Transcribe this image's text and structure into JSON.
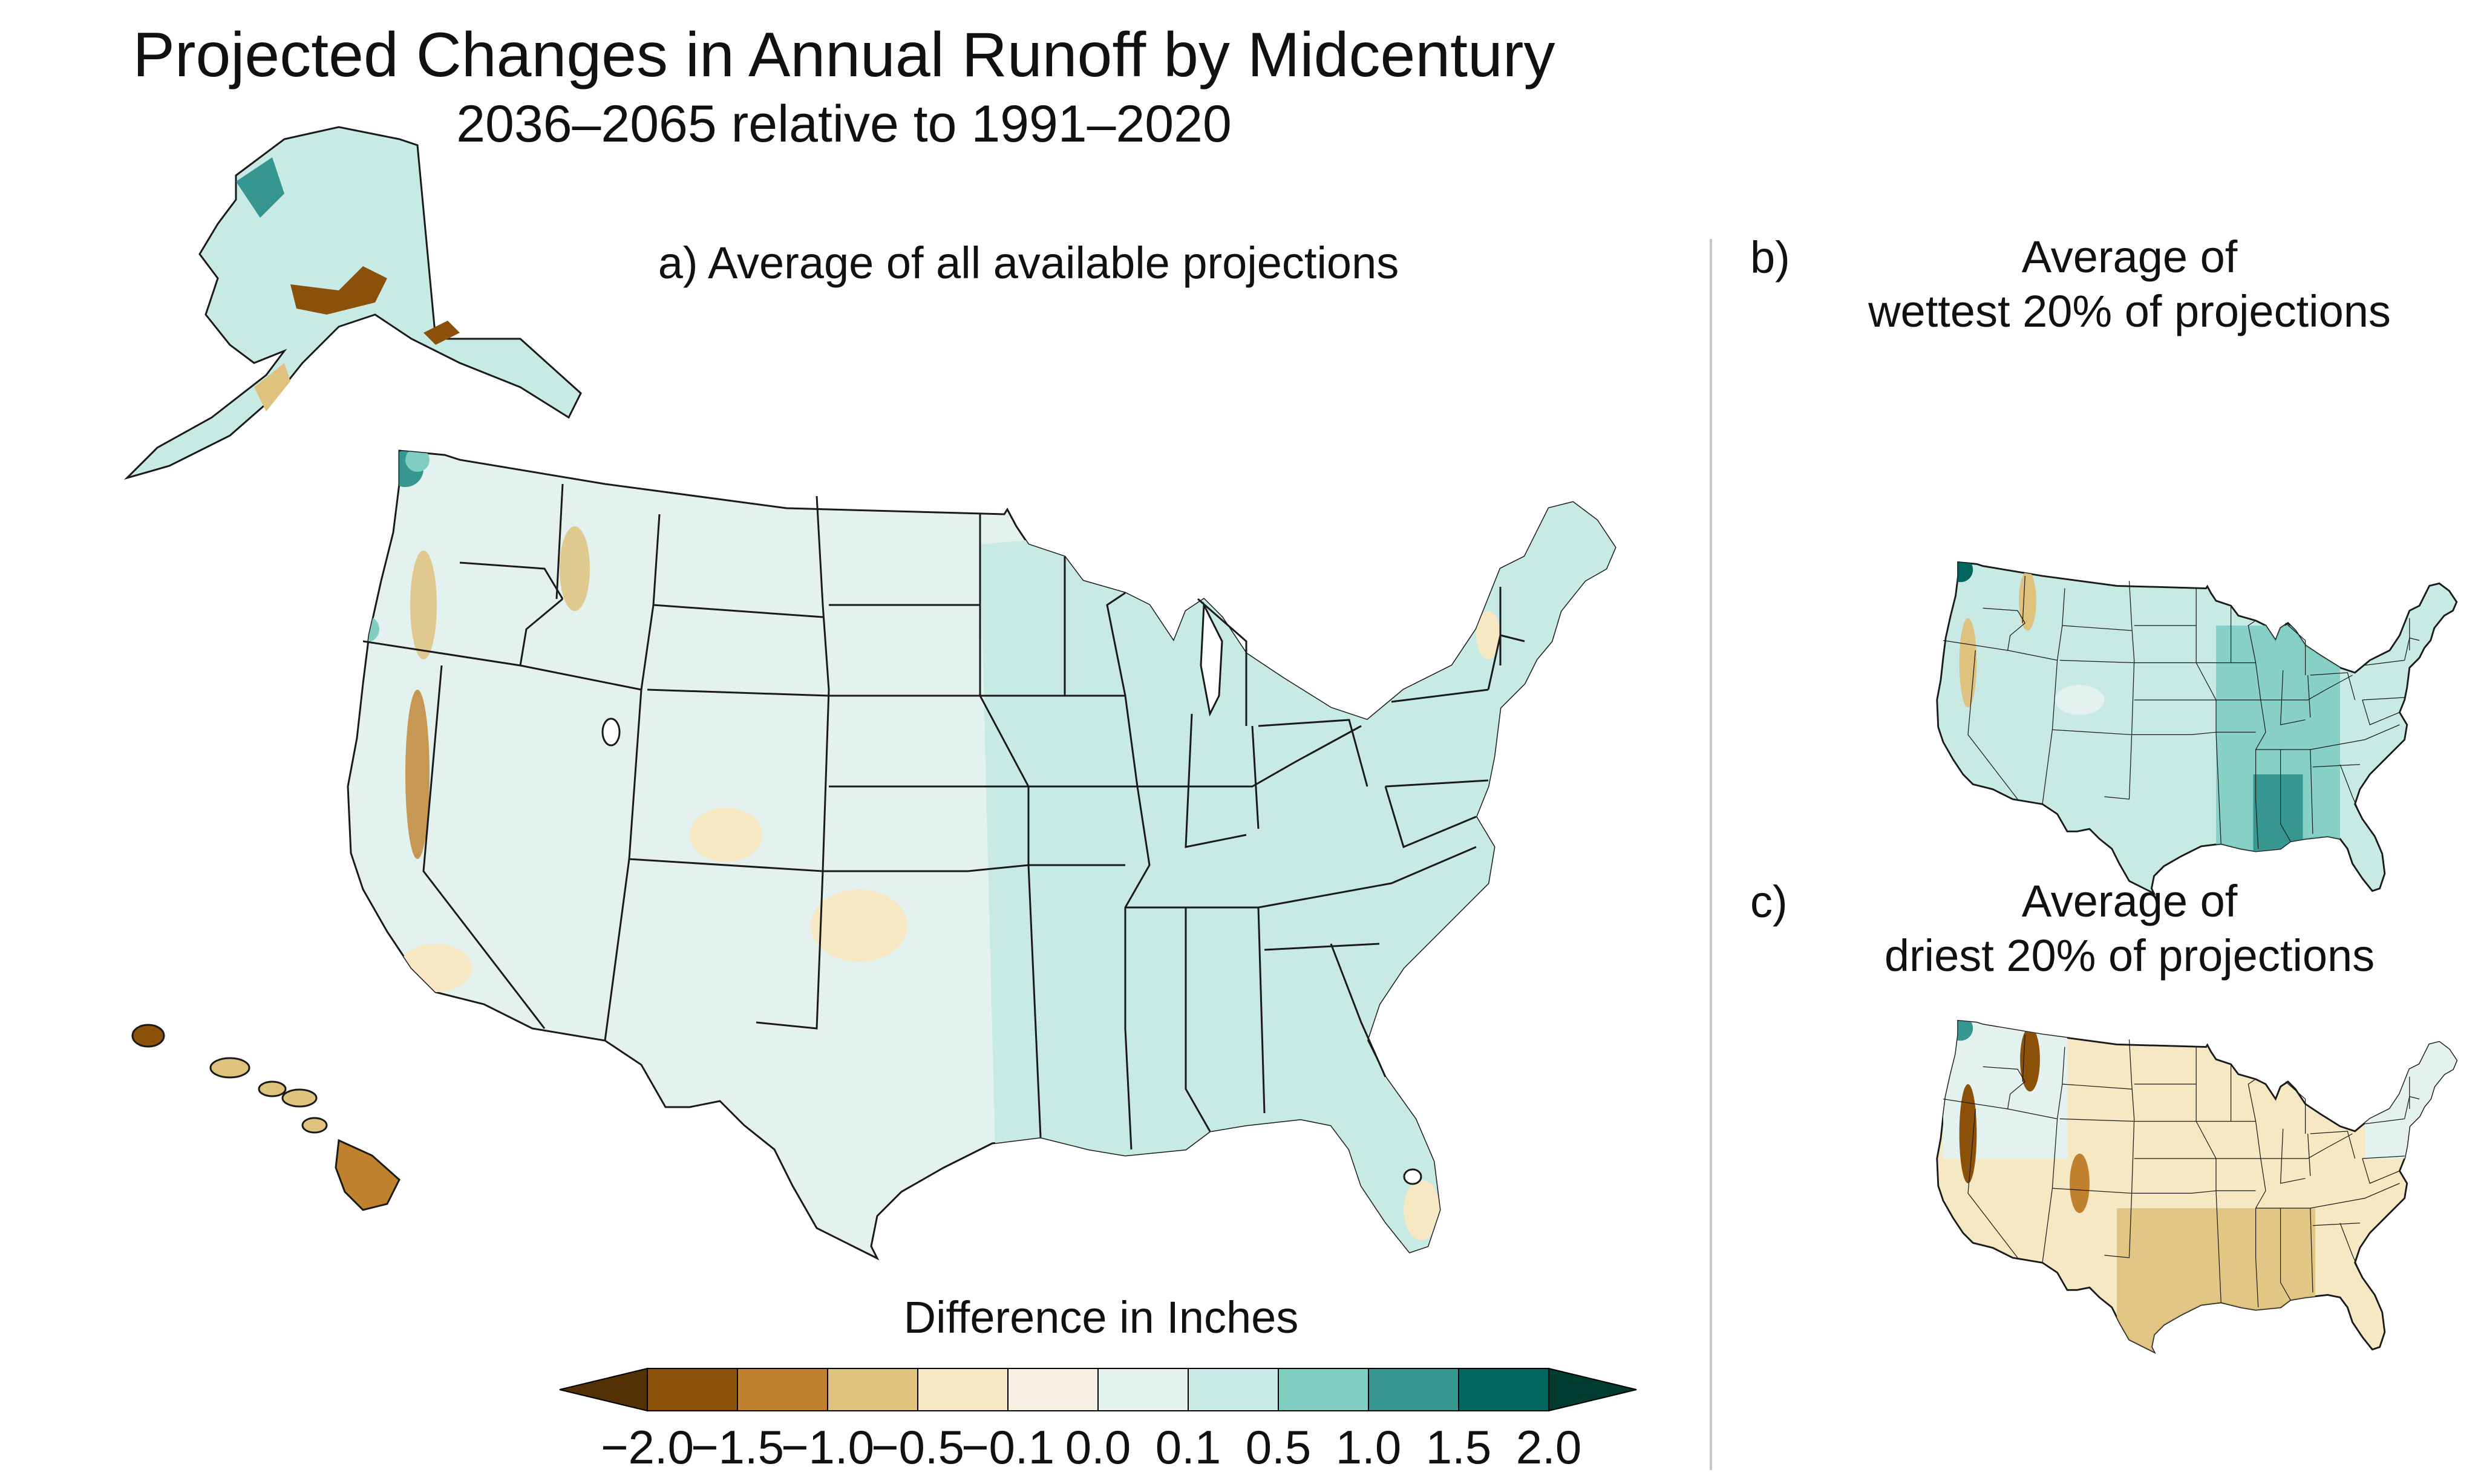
{
  "title": "Projected Changes in Annual Runoff by Midcentury",
  "subtitle": "2036–2065 relative to 1991–2020",
  "panels": {
    "a": {
      "label": "",
      "title": "a) Average of all available projections"
    },
    "b": {
      "label": "b)",
      "title_line1": "Average of",
      "title_line2": "wettest 20% of projections"
    },
    "c": {
      "label": "c)",
      "title_line1": "Average of",
      "title_line2": "driest 20% of projections"
    }
  },
  "legend": {
    "title": "Difference in Inches",
    "ticks": [
      "−2.0",
      "−1.5",
      "−1.0",
      "−0.5",
      "−0.1",
      "0.0",
      "0.1",
      "0.5",
      "1.0",
      "1.5",
      "2.0"
    ],
    "colors": [
      "#543005",
      "#8c5109",
      "#bf812d",
      "#dfc27d",
      "#f6e8c3",
      "#f5f0e2",
      "#e3f2ef",
      "#c7eae5",
      "#80cdc1",
      "#35978f",
      "#01665e",
      "#003c30"
    ]
  },
  "colors": {
    "neutral": "#e3f2ef",
    "wet_light": "#c7eae5",
    "wet_mid": "#80cdc1",
    "wet_dark": "#35978f",
    "dry_light": "#f6e8c3",
    "dry_mid": "#dfc27d",
    "dry_dark": "#8c5109",
    "border": "#1a1a1a"
  }
}
